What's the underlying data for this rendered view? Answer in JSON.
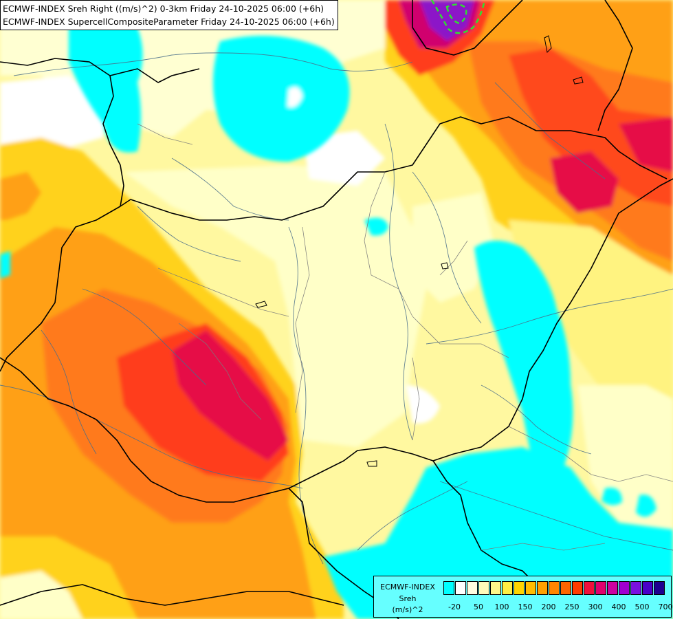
{
  "header": {
    "line1": "ECMWF-INDEX Sreh Right ((m/s)^2) 0-3km Friday 24-10-2025 06:00 (+6h)",
    "line2": "ECMWF-INDEX SupercellCompositeParameter Friday 24-10-2025 06:00 (+6h)"
  },
  "legend": {
    "source": "ECMWF-INDEX",
    "variable": "Sreh",
    "unit": "(m/s)^2",
    "colors": [
      "#00ffff",
      "#ffffff",
      "#fffde0",
      "#fffaba",
      "#fff68a",
      "#ffee44",
      "#ffd500",
      "#ffbd00",
      "#ffa000",
      "#ff8500",
      "#ff6500",
      "#ff3c00",
      "#f0103c",
      "#e0006e",
      "#cc00a0",
      "#a000d0",
      "#7a10e0",
      "#4a00c8",
      "#1e0090"
    ],
    "ticks": [
      "-20",
      "50",
      "100",
      "150",
      "200",
      "250",
      "300",
      "400",
      "500",
      "700"
    ]
  },
  "palette": {
    "cyan": "#00ffff",
    "white": "#ffffff",
    "cream": "#ffffc8",
    "yellow": "#fff380",
    "gold": "#ffd21e",
    "orange": "#ff9c14",
    "dark_orange": "#ff6e1e",
    "red": "#ff321e",
    "crimson": "#e60a46",
    "magenta": "#c8008c",
    "purple": "#8c14c8",
    "supercell_contour": "#30e030"
  }
}
